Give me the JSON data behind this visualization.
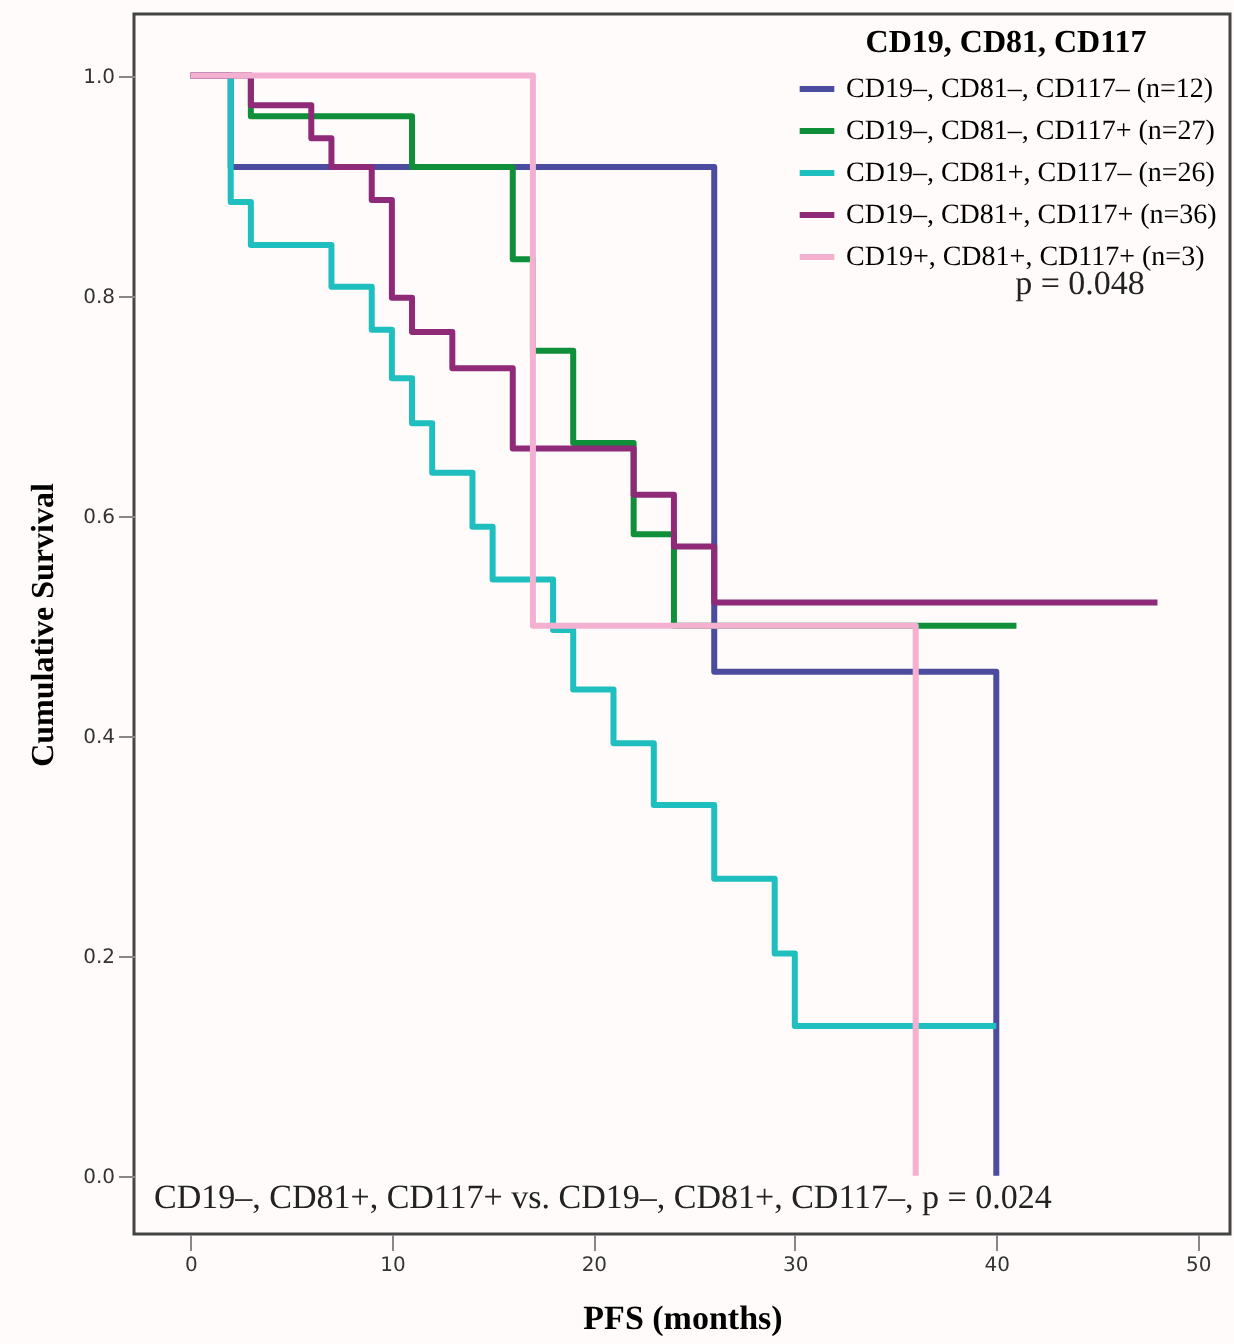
{
  "chart_data": {
    "type": "step",
    "xlabel": "PFS (months)",
    "ylabel": "Cumulative Survival",
    "legend_title": "CD19, CD81, CD117",
    "xlim": [
      -2.8,
      51.6
    ],
    "xticks": [
      0,
      10,
      20,
      30,
      40,
      50
    ],
    "ylim": [
      -0.053,
      1.056
    ],
    "yticks": [
      {
        "value": 0,
        "label": "0.0"
      },
      {
        "value": 0.2,
        "label": "0.2"
      },
      {
        "value": 0.4,
        "label": "0.4"
      },
      {
        "value": 0.6,
        "label": "0.6"
      },
      {
        "value": 0.8,
        "label": "0.8"
      },
      {
        "value": 1,
        "label": "1.0"
      }
    ],
    "grid": false,
    "legend": "top right",
    "line_style": "solid",
    "series": [
      {
        "name": "CD19–, CD81–, CD117– (n=12)",
        "color": "#4b4ba0",
        "x": [
          0,
          2,
          26,
          40
        ],
        "values": [
          1,
          0.917,
          0.458,
          0
        ]
      },
      {
        "name": "CD19–, CD81–, CD117+ (n=27)",
        "color": "#0f8f3a",
        "x": [
          3,
          3,
          11,
          16,
          17,
          19,
          22,
          24,
          41
        ],
        "values": [
          1,
          0.963,
          0.917,
          0.833,
          0.75,
          0.666,
          0.583,
          0.5,
          0.5
        ]
      },
      {
        "name": "CD19–, CD81+, CD117– (n=26)",
        "color": "#1fbfbf",
        "x": [
          2,
          2,
          3,
          7,
          9,
          10,
          11,
          12,
          14,
          15,
          18,
          19,
          21,
          23,
          26,
          29,
          30,
          40
        ],
        "values": [
          1,
          0.885,
          0.846,
          0.808,
          0.769,
          0.725,
          0.684,
          0.639,
          0.59,
          0.542,
          0.496,
          0.442,
          0.393,
          0.337,
          0.27,
          0.202,
          0.136,
          0.136
        ]
      },
      {
        "name": "CD19–, CD81+, CD117+ (n=36)",
        "color": "#8e2a78",
        "x": [
          0,
          3,
          6,
          7,
          9,
          10,
          11,
          13,
          16,
          22,
          24,
          26,
          48
        ],
        "values": [
          1,
          0.973,
          0.943,
          0.917,
          0.887,
          0.798,
          0.767,
          0.734,
          0.661,
          0.619,
          0.572,
          0.521,
          0.521
        ]
      },
      {
        "name": "CD19+, CD81+, CD117+ (n=3)",
        "color": "#f4b0d0",
        "x": [
          0,
          17,
          36
        ],
        "values": [
          1,
          0.5,
          0
        ]
      }
    ],
    "annotations": [
      "p = 0.048",
      "CD19–, CD81+, CD117+ vs. CD19–, CD81+, CD117–, p = 0.024"
    ]
  }
}
